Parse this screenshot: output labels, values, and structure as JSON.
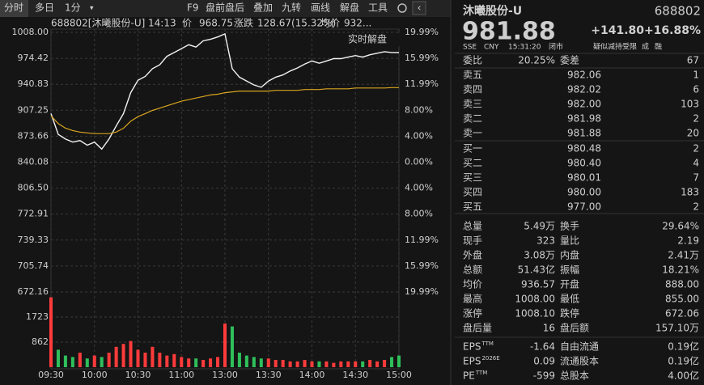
{
  "toolbar": {
    "tabs": [
      "分时",
      "多日",
      "1分"
    ],
    "tools": [
      "F9",
      "盘前盘后",
      "叠加",
      "九转",
      "画线",
      "解盘",
      "工具"
    ]
  },
  "colors": {
    "up": "#ff3b3b",
    "down": "#2fbf5b",
    "flat": "#d4d4d4"
  },
  "chart_header": {
    "code_name": "688802[沐曦股份-U]",
    "time": "14:13",
    "price_label": "价",
    "price": "968.75",
    "change_label": "涨跌",
    "change": "128.67(15.32%)",
    "avg_label": "均价",
    "avg": "932..."
  },
  "chart_data": [
    {
      "type": "line",
      "annotation": "实时解盘",
      "categories": [
        "09:30",
        null,
        null,
        null,
        null,
        null,
        "10:00",
        null,
        null,
        null,
        null,
        null,
        "10:30",
        null,
        null,
        null,
        null,
        null,
        "11:00",
        null,
        null,
        null,
        null,
        null,
        "13:00",
        null,
        null,
        null,
        null,
        null,
        "13:30",
        null,
        null,
        null,
        null,
        null,
        "14:00",
        null,
        null,
        null,
        null,
        null,
        "14:30",
        null,
        null,
        null,
        null,
        null,
        "15:00"
      ],
      "series": [
        {
          "color": "#f2f2f2",
          "values": [
            903,
            876,
            870,
            866,
            868,
            862,
            866,
            857,
            870,
            887,
            903,
            930,
            946,
            951,
            961,
            966,
            977,
            982,
            987,
            992,
            989,
            997,
            999,
            1002,
            1006,
            961,
            950,
            945,
            940,
            937,
            945,
            950,
            953,
            958,
            962,
            967,
            971,
            968,
            971,
            974,
            974,
            976,
            978,
            976,
            979,
            981,
            983,
            982,
            981.88
          ]
        },
        {
          "color": "#d9a520",
          "values": [
            900,
            890,
            884,
            881,
            879,
            878,
            877,
            877,
            877,
            879,
            884,
            893,
            899,
            903,
            907,
            910,
            913,
            916,
            919,
            921,
            923,
            925,
            927,
            928,
            930,
            931,
            932,
            932,
            932,
            932,
            932,
            933,
            933,
            933,
            933,
            934,
            934,
            934,
            935,
            935,
            935,
            935,
            936,
            936,
            936,
            936,
            936,
            936.5,
            936.57
          ]
        }
      ],
      "ylim": [
        672.16,
        1008
      ],
      "yticks": [
        {
          "value": 1008,
          "label": "1008.00"
        },
        974.42,
        940.83,
        907.25,
        873.66,
        840.08,
        {
          "value": 806.5,
          "label": "806.50"
        },
        772.91,
        739.33,
        705.74,
        672.16
      ],
      "y2lim": [
        -19.99,
        19.99
      ],
      "y2ticks": [
        {
          "value": 19.99,
          "label": "19.99%"
        },
        {
          "value": 15.99,
          "label": "15.99%"
        },
        {
          "value": 11.99,
          "label": "11.99%"
        },
        {
          "value": 8,
          "label": "8.00%"
        },
        {
          "value": 4,
          "label": "4.00%"
        },
        {
          "value": 0,
          "label": "0.00%"
        },
        {
          "value": -4,
          "label": "4.00%"
        },
        {
          "value": -8,
          "label": "8.00%"
        },
        {
          "value": -11.99,
          "label": "11.99%"
        },
        {
          "value": -15.99,
          "label": "15.99%"
        },
        {
          "value": -19.99,
          "label": "19.99%"
        }
      ],
      "grid": true
    },
    {
      "type": "bar",
      "values": [
        2400,
        600,
        400,
        350,
        500,
        300,
        400,
        350,
        500,
        700,
        800,
        900,
        600,
        500,
        700,
        500,
        400,
        450,
        350,
        300,
        300,
        250,
        300,
        350,
        1500,
        1400,
        500,
        400,
        350,
        300,
        300,
        250,
        250,
        200,
        200,
        250,
        200,
        200,
        200,
        150,
        200,
        200,
        200,
        200,
        250,
        200,
        250,
        350,
        400
      ],
      "ylim": [
        0,
        2500
      ],
      "yticks": [
        1723,
        862
      ],
      "grid": true
    }
  ],
  "quote": {
    "name": "沐曦股份-U",
    "code": "688802",
    "price": "981.88",
    "change": "+141.80",
    "change_pct": "+16.88%",
    "meta": [
      "SSE",
      "CNY",
      "15:31:20",
      "闭市"
    ],
    "tags": [
      "疑似减持受限",
      "成",
      "融"
    ],
    "ratio": [
      {
        "label": "委比",
        "value": "20.25%",
        "tone": "up"
      },
      {
        "label": "委差",
        "value": "67",
        "tone": "down"
      }
    ],
    "asks": [
      {
        "label": "卖五",
        "price": "982.06",
        "volume": "1"
      },
      {
        "label": "卖四",
        "price": "982.02",
        "volume": "6"
      },
      {
        "label": "卖三",
        "price": "982.00",
        "volume": "103"
      },
      {
        "label": "卖二",
        "price": "981.98",
        "volume": "2"
      },
      {
        "label": "卖一",
        "price": "981.88",
        "volume": "20"
      }
    ],
    "bids": [
      {
        "label": "买一",
        "price": "980.48",
        "volume": "2"
      },
      {
        "label": "买二",
        "price": "980.40",
        "volume": "4"
      },
      {
        "label": "买三",
        "price": "980.01",
        "volume": "7"
      },
      {
        "label": "买四",
        "price": "980.00",
        "volume": "183"
      },
      {
        "label": "买五",
        "price": "977.00",
        "volume": "2"
      }
    ],
    "stats": [
      [
        {
          "label": "总量",
          "value": "5.49万"
        },
        {
          "label": "换手",
          "value": "29.64%"
        }
      ],
      [
        {
          "label": "现手",
          "value": "323"
        },
        {
          "label": "量比",
          "value": "2.19"
        }
      ],
      [
        {
          "label": "外盘",
          "value": "3.08万",
          "tone": "up"
        },
        {
          "label": "内盘",
          "value": "2.41万",
          "tone": "down"
        }
      ],
      [
        {
          "label": "总额",
          "value": "51.43亿"
        },
        {
          "label": "振幅",
          "value": "18.21%"
        }
      ],
      [
        {
          "label": "均价",
          "value": "936.57"
        },
        {
          "label": "开盘",
          "value": "888.00",
          "tone": "up"
        }
      ],
      [
        {
          "label": "最高",
          "value": "1008.00",
          "tone": "up"
        },
        {
          "label": "最低",
          "value": "855.00",
          "tone": "up"
        }
      ],
      [
        {
          "label": "涨停",
          "value": "1008.10",
          "tone": "up"
        },
        {
          "label": "跌停",
          "value": "672.06",
          "tone": "down"
        }
      ],
      [
        {
          "label": "盘后量",
          "value": "16"
        },
        {
          "label": "盘后额",
          "value": "157.10万"
        }
      ]
    ],
    "fundamentals": [
      [
        {
          "label": "EPS",
          "sup": "TTM",
          "value": "-1.64"
        },
        {
          "label": "自由流通",
          "value": "0.19亿"
        }
      ],
      [
        {
          "label": "EPS",
          "sup": "2026E",
          "value": "0.09"
        },
        {
          "label": "流通股本",
          "value": "0.19亿"
        }
      ],
      [
        {
          "label": "PE",
          "sup": "TTM",
          "value": "-599"
        },
        {
          "label": "总股本",
          "value": "4.00亿"
        }
      ]
    ]
  }
}
